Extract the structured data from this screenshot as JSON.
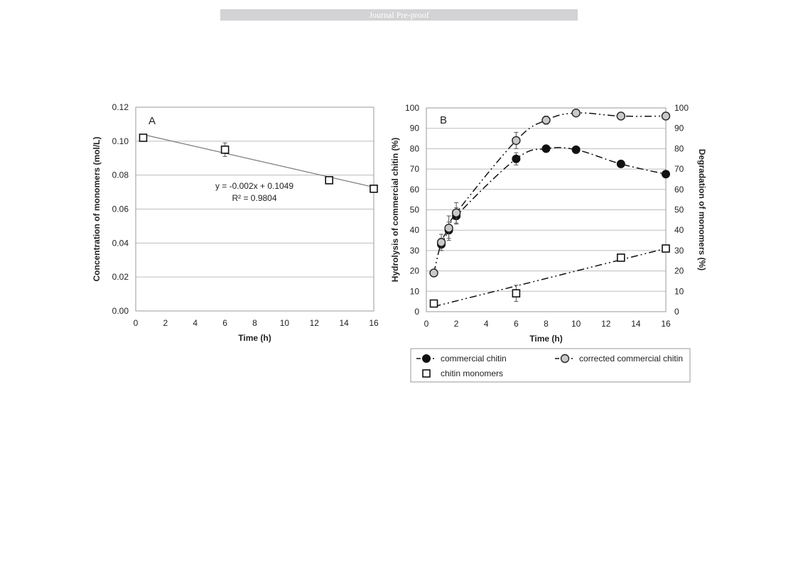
{
  "banner": {
    "text": "Journal Pre-proof"
  },
  "chart_data": [
    {
      "type": "scatter",
      "panel": "A",
      "xlabel": "Time (h)",
      "ylabel": "Concentration of monomers (mol/L)",
      "xlim": [
        0,
        16
      ],
      "ylim": [
        0,
        0.12
      ],
      "x_ticks": [
        "0",
        "2",
        "4",
        "6",
        "8",
        "10",
        "12",
        "14",
        "16"
      ],
      "y_ticks": [
        "0.00",
        "0.02",
        "0.04",
        "0.06",
        "0.08",
        "0.10",
        "0.12"
      ],
      "grid": true,
      "series": [
        {
          "marker": "open-square",
          "x": [
            0.5,
            6,
            13,
            16
          ],
          "y": [
            0.102,
            0.095,
            0.077,
            0.072
          ],
          "err": [
            0.002,
            0.004,
            0.001,
            0.001
          ]
        }
      ],
      "trendline": {
        "slope": -0.002,
        "intercept": 0.1049,
        "x_range": [
          0.5,
          16
        ]
      },
      "annotation": {
        "equation": "y = -0.002x + 0.1049",
        "r2": "R² = 0.9804"
      }
    },
    {
      "type": "line",
      "panel": "B",
      "xlabel": "Time (h)",
      "ylabel": "Hydrolysis of commercial chitin (%)",
      "y2label": "Degradation of monomers (%)",
      "xlim": [
        0,
        16
      ],
      "ylim": [
        0,
        100
      ],
      "y2lim": [
        0,
        100
      ],
      "x_ticks": [
        "0",
        "2",
        "4",
        "6",
        "8",
        "10",
        "12",
        "14",
        "16"
      ],
      "y_ticks": [
        "0",
        "10",
        "20",
        "30",
        "40",
        "50",
        "60",
        "70",
        "80",
        "90",
        "100"
      ],
      "y2_ticks": [
        "0",
        "10",
        "20",
        "30",
        "40",
        "50",
        "60",
        "70",
        "80",
        "90",
        "100"
      ],
      "grid": true,
      "legend_position": "bottom",
      "series": [
        {
          "name": "commercial chitin",
          "marker": "filled-circle",
          "x": [
            1,
            1.5,
            2,
            6,
            8,
            10,
            13,
            16
          ],
          "y": [
            33,
            40,
            47,
            75,
            80,
            79.5,
            72.5,
            67.5
          ],
          "err": [
            3,
            4,
            4,
            3,
            0,
            0,
            0,
            0
          ]
        },
        {
          "name": "corrected commercial chitin",
          "marker": "open-circle",
          "x": [
            0.5,
            1,
            1.5,
            2,
            6,
            8,
            10,
            13,
            16
          ],
          "y": [
            19,
            34,
            41,
            48.5,
            84,
            94,
            97.5,
            96,
            96
          ],
          "err": [
            0,
            4,
            6,
            5,
            4,
            2,
            0,
            0,
            0
          ]
        },
        {
          "name": "chitin monomers",
          "marker": "open-square",
          "axis": "y2",
          "x": [
            0.5,
            6,
            13,
            16
          ],
          "y": [
            4,
            9,
            26.5,
            31
          ],
          "err": [
            0,
            4,
            0,
            0
          ]
        }
      ]
    }
  ]
}
